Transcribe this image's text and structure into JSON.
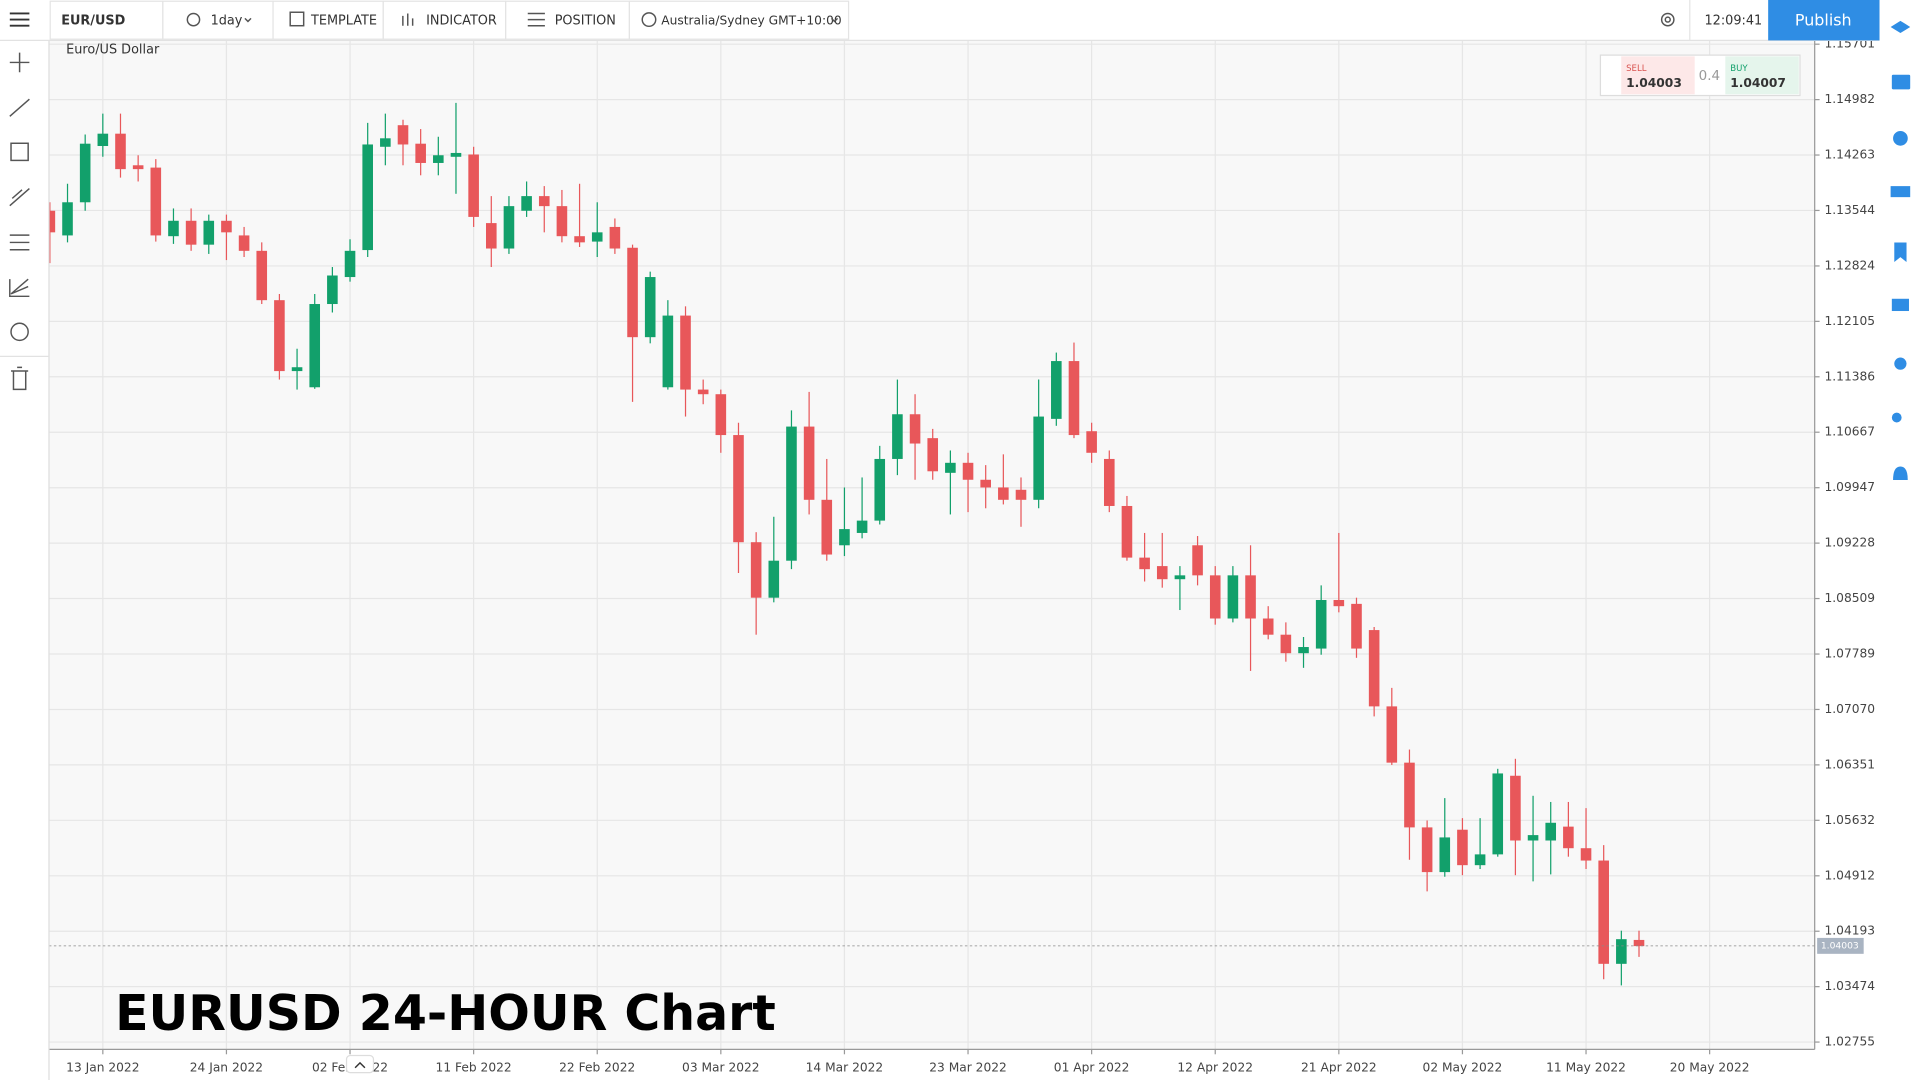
{
  "toolbar": {
    "symbol": "EUR/USD",
    "interval": "1day",
    "template": "TEMPLATE",
    "indicator": "INDICATOR",
    "position": "POSITION",
    "timezone": "Australia/Sydney GMT+10:00",
    "clock": "12:09:41",
    "publish": "Publish"
  },
  "quote": {
    "sell_label": "SELL",
    "sell": 1.04003,
    "spread": 0.4,
    "buy_label": "BUY",
    "buy": 1.04007
  },
  "chart_data": {
    "type": "candlestick",
    "title": "EURUSD 24-HOUR Chart",
    "subtitle": "Euro/US Dollar",
    "categories": [
      null,
      null,
      null,
      "13 Jan 2022",
      null,
      null,
      null,
      null,
      null,
      null,
      "24 Jan 2022",
      null,
      null,
      null,
      null,
      null,
      null,
      "02 Feb 2022",
      null,
      null,
      null,
      null,
      null,
      null,
      "11 Feb 2022",
      null,
      null,
      null,
      null,
      null,
      null,
      "22 Feb 2022",
      null,
      null,
      null,
      null,
      null,
      null,
      "03 Mar 2022",
      null,
      null,
      null,
      null,
      null,
      null,
      "14 Mar 2022",
      null,
      null,
      null,
      null,
      null,
      null,
      "23 Mar 2022",
      null,
      null,
      null,
      null,
      null,
      null,
      "01 Apr 2022",
      null,
      null,
      null,
      null,
      null,
      null,
      "12 Apr 2022",
      null,
      null,
      null,
      null,
      null,
      null,
      "21 Apr 2022",
      null,
      null,
      null,
      null,
      null,
      null,
      "02 May 2022",
      null,
      null,
      null,
      null,
      null,
      null,
      "11 May 2022",
      null,
      null,
      null,
      null,
      null,
      null,
      "20 May 2022",
      null,
      null,
      null,
      null,
      null
    ],
    "open": [
      1.1354,
      1.1322,
      1.1365,
      1.1438,
      1.1454,
      1.1413,
      1.141,
      1.1321,
      1.1341,
      1.131,
      1.1341,
      1.1322,
      1.1302,
      1.1238,
      1.1146,
      1.1125,
      1.1233,
      1.1268,
      1.1303,
      1.1437,
      1.1465,
      1.1441,
      1.1416,
      1.1424,
      1.1427,
      1.1338,
      1.1305,
      1.1354,
      1.1373,
      1.136,
      1.1321,
      1.1314,
      1.1333,
      1.1306,
      1.119,
      1.1125,
      1.1218,
      1.1122,
      1.1116,
      1.1063,
      1.0924,
      1.0852,
      1.09,
      1.1074,
      1.0979,
      1.092,
      1.0936,
      1.0952,
      1.1032,
      1.109,
      1.1059,
      1.1014,
      1.1027,
      1.1005,
      1.0995,
      1.0992,
      1.0979,
      1.1084,
      1.1159,
      1.1068,
      1.1032,
      1.0971,
      1.0904,
      1.0893,
      1.0876,
      1.092,
      1.0881,
      1.0825,
      1.0881,
      1.0825,
      1.0804,
      1.078,
      1.0786,
      1.0849,
      1.0844,
      1.081,
      1.0711,
      1.0638,
      1.0554,
      1.0496,
      1.0551,
      1.0505,
      1.0519,
      1.0621,
      1.0537,
      1.0537,
      1.0555,
      1.0527,
      1.0511,
      1.0377,
      1.0408,
      null,
      null,
      null,
      null,
      null,
      null,
      null,
      null,
      null
    ],
    "high": [
      1.1365,
      1.1389,
      1.1453,
      1.148,
      1.148,
      1.1426,
      1.1421,
      1.1357,
      1.1357,
      1.1349,
      1.1349,
      1.1333,
      1.1313,
      1.1246,
      1.1175,
      1.1246,
      1.1281,
      1.1317,
      1.1468,
      1.148,
      1.1472,
      1.146,
      1.145,
      1.1494,
      1.1437,
      1.1373,
      1.1373,
      1.1392,
      1.1386,
      1.1381,
      1.1389,
      1.1365,
      1.1344,
      1.131,
      1.1275,
      1.1238,
      1.123,
      1.1135,
      1.1122,
      1.1079,
      1.0937,
      1.0957,
      1.1095,
      1.1119,
      1.1032,
      1.0995,
      1.1008,
      1.1049,
      1.1135,
      1.1116,
      1.1071,
      1.1043,
      1.104,
      1.1024,
      1.1038,
      1.1008,
      1.1135,
      1.117,
      1.1183,
      1.1079,
      1.1043,
      1.0984,
      1.0936,
      1.0936,
      1.0893,
      1.0932,
      1.0893,
      1.0893,
      1.092,
      1.0841,
      1.082,
      1.0801,
      1.0868,
      1.0936,
      1.0852,
      1.0814,
      1.0735,
      1.0655,
      1.0563,
      1.0592,
      1.0566,
      1.0566,
      1.063,
      1.0643,
      1.0595,
      1.0587,
      1.0587,
      1.0579,
      1.0531,
      1.042,
      1.042,
      null,
      null,
      null,
      null,
      null,
      null,
      null,
      null,
      null
    ],
    "low": [
      1.1286,
      1.1313,
      1.1354,
      1.1424,
      1.1397,
      1.1392,
      1.1314,
      1.1311,
      1.1302,
      1.1298,
      1.129,
      1.1294,
      1.1233,
      1.1135,
      1.1122,
      1.1123,
      1.1222,
      1.1262,
      1.1294,
      1.1413,
      1.1413,
      1.14,
      1.14,
      1.1376,
      1.1333,
      1.1281,
      1.1298,
      1.1346,
      1.1326,
      1.1313,
      1.1307,
      1.1294,
      1.1298,
      1.1106,
      1.1182,
      1.1122,
      1.1087,
      1.1103,
      1.104,
      1.0884,
      1.0804,
      1.0846,
      1.0889,
      1.096,
      1.09,
      1.0906,
      1.0929,
      1.0947,
      1.1011,
      1.1005,
      1.1005,
      1.096,
      1.0963,
      1.0968,
      1.0973,
      1.0944,
      1.0968,
      1.1075,
      1.1059,
      1.1027,
      1.0963,
      1.09,
      1.0873,
      1.0865,
      1.0836,
      1.0868,
      1.0817,
      1.082,
      1.0757,
      1.0798,
      1.0769,
      1.0761,
      1.0778,
      1.0833,
      1.0774,
      1.0698,
      1.0635,
      1.0512,
      1.0471,
      1.049,
      1.0492,
      1.05,
      1.0516,
      1.0492,
      1.0484,
      1.0493,
      1.0516,
      1.05,
      1.0357,
      1.0349,
      1.0386,
      null,
      null,
      null,
      null,
      null,
      null,
      null,
      null,
      null
    ],
    "close": [
      1.1326,
      1.1365,
      1.1441,
      1.1454,
      1.1408,
      1.1408,
      1.1322,
      1.1341,
      1.131,
      1.1341,
      1.1326,
      1.1302,
      1.1238,
      1.1146,
      1.1151,
      1.1233,
      1.127,
      1.1302,
      1.144,
      1.1448,
      1.144,
      1.1416,
      1.1426,
      1.1429,
      1.1346,
      1.1305,
      1.136,
      1.1373,
      1.136,
      1.1321,
      1.1313,
      1.1326,
      1.1305,
      1.119,
      1.1268,
      1.1218,
      1.1122,
      1.1116,
      1.1063,
      1.0924,
      1.0852,
      1.09,
      1.1074,
      1.0979,
      1.0908,
      1.0941,
      1.0952,
      1.1032,
      1.109,
      1.1052,
      1.1016,
      1.1027,
      1.1005,
      1.0995,
      1.0979,
      1.0979,
      1.1087,
      1.1159,
      1.1063,
      1.104,
      1.0971,
      1.0904,
      1.0889,
      1.0876,
      1.0881,
      1.0881,
      1.0825,
      1.0881,
      1.0825,
      1.0804,
      1.078,
      1.0788,
      1.0849,
      1.0841,
      1.0786,
      1.0711,
      1.0638,
      1.0554,
      1.0496,
      1.0541,
      1.0505,
      1.0519,
      1.0624,
      1.0537,
      1.0544,
      1.056,
      1.0527,
      1.0511,
      1.0377,
      1.0409,
      1.04,
      null,
      null,
      null,
      null,
      null,
      null,
      null,
      null,
      null
    ],
    "up_color": "#12a06b",
    "down_color": "#e8575a",
    "ylim": [
      1.0266,
      1.1575
    ],
    "yticks": [
      1.15701,
      1.14982,
      1.14263,
      1.13544,
      1.12824,
      1.12105,
      1.11386,
      1.10667,
      1.09947,
      1.09228,
      1.08509,
      1.07789,
      {
        "value": 1.0707,
        "label": "1.07070"
      },
      1.06351,
      1.05632,
      1.04912,
      1.04193,
      1.03474,
      1.02755
    ],
    "grid": true,
    "last_price": 1.04003
  }
}
